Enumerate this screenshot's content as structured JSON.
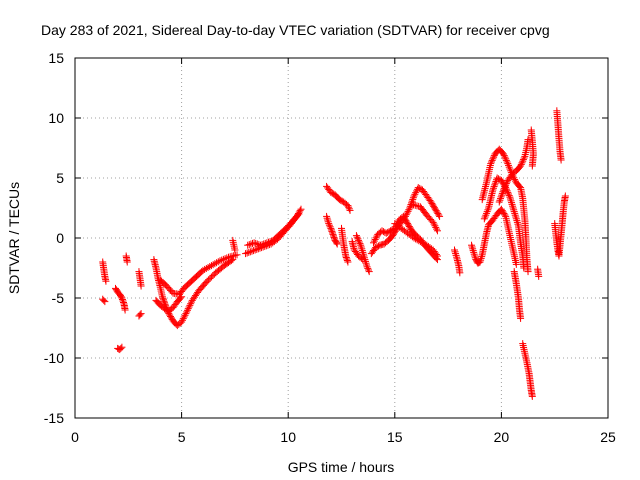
{
  "chart_data": {
    "type": "scatter",
    "title": "Day 283 of 2021, Sidereal Day-to-day VTEC variation (SDTVAR) for receiver cpvg",
    "xlabel": "GPS time / hours",
    "ylabel": "SDTVAR / TECUs",
    "xlim": [
      0,
      25
    ],
    "ylim": [
      -15,
      15
    ],
    "x_ticks": [
      "0",
      "5",
      "10",
      "15",
      "20",
      "25"
    ],
    "y_ticks": [
      "15",
      "10",
      "5",
      "0",
      "-5",
      "-10",
      "-15"
    ],
    "grid": true,
    "marker": "+",
    "color": "#ff0000",
    "segments": [
      {
        "name": "seg-01",
        "points": [
          [
            1.3,
            -2.0
          ],
          [
            1.35,
            -2.6
          ],
          [
            1.4,
            -3.2
          ],
          [
            1.45,
            -3.6
          ]
        ]
      },
      {
        "name": "seg-02",
        "points": [
          [
            1.3,
            -5.1
          ],
          [
            1.4,
            -5.3
          ]
        ]
      },
      {
        "name": "seg-03",
        "points": [
          [
            1.9,
            -4.2
          ],
          [
            2.0,
            -4.5
          ],
          [
            2.1,
            -4.7
          ],
          [
            2.2,
            -5.0
          ],
          [
            2.3,
            -5.5
          ],
          [
            2.35,
            -6.0
          ]
        ]
      },
      {
        "name": "seg-04",
        "points": [
          [
            2.0,
            -9.2
          ],
          [
            2.1,
            -9.3
          ],
          [
            2.2,
            -9.1
          ]
        ]
      },
      {
        "name": "seg-05",
        "points": [
          [
            2.4,
            -1.5
          ],
          [
            2.45,
            -2.0
          ]
        ]
      },
      {
        "name": "seg-06",
        "points": [
          [
            3.0,
            -6.5
          ],
          [
            3.1,
            -6.3
          ]
        ]
      },
      {
        "name": "seg-07",
        "points": [
          [
            3.0,
            -2.8
          ],
          [
            3.05,
            -3.4
          ],
          [
            3.1,
            -4.0
          ]
        ]
      },
      {
        "name": "seg-08",
        "points": [
          [
            3.7,
            -1.8
          ],
          [
            3.8,
            -2.5
          ],
          [
            3.9,
            -3.4
          ],
          [
            4.0,
            -4.1
          ],
          [
            4.1,
            -4.9
          ],
          [
            4.2,
            -5.4
          ],
          [
            4.3,
            -5.9
          ],
          [
            4.4,
            -6.3
          ],
          [
            4.6,
            -6.9
          ],
          [
            4.8,
            -7.3
          ],
          [
            5.0,
            -7.0
          ],
          [
            5.2,
            -6.3
          ],
          [
            5.5,
            -5.2
          ],
          [
            5.8,
            -4.4
          ],
          [
            6.2,
            -3.6
          ],
          [
            6.6,
            -2.9
          ],
          [
            7.0,
            -2.3
          ],
          [
            7.4,
            -1.8
          ]
        ]
      },
      {
        "name": "seg-09",
        "points": [
          [
            4.0,
            -3.5
          ],
          [
            4.3,
            -4.0
          ],
          [
            4.6,
            -4.6
          ],
          [
            4.9,
            -4.7
          ],
          [
            5.1,
            -4.2
          ],
          [
            5.4,
            -3.7
          ],
          [
            5.7,
            -3.2
          ],
          [
            6.0,
            -2.7
          ],
          [
            6.4,
            -2.3
          ],
          [
            6.8,
            -1.9
          ],
          [
            7.2,
            -1.6
          ],
          [
            7.6,
            -1.4
          ]
        ]
      },
      {
        "name": "seg-10",
        "points": [
          [
            3.8,
            -5.2
          ],
          [
            4.0,
            -5.6
          ],
          [
            4.2,
            -5.9
          ],
          [
            4.4,
            -6.1
          ],
          [
            4.6,
            -5.8
          ],
          [
            4.8,
            -5.3
          ],
          [
            5.0,
            -4.9
          ]
        ]
      },
      {
        "name": "seg-11",
        "points": [
          [
            7.4,
            -0.2
          ],
          [
            7.5,
            -1.0
          ]
        ]
      },
      {
        "name": "seg-12",
        "points": [
          [
            8.0,
            -1.3
          ],
          [
            8.3,
            -1.1
          ],
          [
            8.6,
            -0.9
          ],
          [
            8.9,
            -0.7
          ],
          [
            9.2,
            -0.5
          ],
          [
            9.5,
            -0.1
          ],
          [
            9.8,
            0.5
          ],
          [
            10.1,
            1.1
          ],
          [
            10.4,
            1.8
          ],
          [
            10.6,
            2.4
          ]
        ]
      },
      {
        "name": "seg-13",
        "points": [
          [
            8.1,
            -0.6
          ],
          [
            8.4,
            -0.4
          ],
          [
            8.7,
            -0.6
          ],
          [
            9.0,
            -0.4
          ],
          [
            9.3,
            -0.2
          ],
          [
            9.6,
            0.3
          ],
          [
            9.9,
            0.8
          ],
          [
            10.2,
            1.4
          ],
          [
            10.5,
            2.0
          ]
        ]
      },
      {
        "name": "seg-14",
        "points": [
          [
            11.8,
            4.3
          ],
          [
            12.0,
            3.8
          ],
          [
            12.2,
            3.6
          ],
          [
            12.4,
            3.2
          ],
          [
            12.6,
            3.0
          ],
          [
            12.8,
            2.7
          ],
          [
            12.9,
            2.3
          ]
        ]
      },
      {
        "name": "seg-15",
        "points": [
          [
            11.8,
            1.8
          ],
          [
            11.9,
            1.2
          ],
          [
            12.0,
            0.8
          ],
          [
            12.1,
            0.3
          ],
          [
            12.2,
            -0.2
          ],
          [
            12.3,
            -0.5
          ]
        ]
      },
      {
        "name": "seg-16",
        "points": [
          [
            12.5,
            0.8
          ],
          [
            12.6,
            -0.5
          ],
          [
            12.7,
            -1.5
          ],
          [
            12.8,
            -2.0
          ]
        ]
      },
      {
        "name": "seg-17",
        "points": [
          [
            13.0,
            -0.3
          ],
          [
            13.1,
            -1.0
          ],
          [
            13.3,
            -1.5
          ],
          [
            13.5,
            -1.8
          ]
        ]
      },
      {
        "name": "seg-18",
        "points": [
          [
            13.2,
            0.2
          ],
          [
            13.4,
            -0.6
          ],
          [
            13.5,
            -1.2
          ],
          [
            13.6,
            -1.8
          ],
          [
            13.7,
            -2.4
          ],
          [
            13.8,
            -2.8
          ]
        ]
      },
      {
        "name": "seg-19",
        "points": [
          [
            13.9,
            -1.3
          ],
          [
            14.1,
            -0.8
          ],
          [
            14.3,
            -0.6
          ],
          [
            14.5,
            -0.5
          ],
          [
            14.7,
            -0.2
          ],
          [
            14.9,
            0.2
          ],
          [
            15.1,
            0.8
          ],
          [
            15.3,
            1.3
          ],
          [
            15.5,
            1.8
          ],
          [
            15.7,
            2.5
          ],
          [
            15.9,
            3.5
          ],
          [
            16.1,
            4.2
          ],
          [
            16.3,
            4.0
          ],
          [
            16.5,
            3.5
          ],
          [
            16.7,
            3.0
          ],
          [
            16.9,
            2.4
          ],
          [
            17.1,
            1.8
          ]
        ]
      },
      {
        "name": "seg-20",
        "points": [
          [
            14.0,
            -0.4
          ],
          [
            14.2,
            0.3
          ],
          [
            14.4,
            0.6
          ],
          [
            14.6,
            0.4
          ],
          [
            14.8,
            0.6
          ],
          [
            15.0,
            0.8
          ],
          [
            15.2,
            1.5
          ],
          [
            15.4,
            1.8
          ],
          [
            15.6,
            1.2
          ],
          [
            15.8,
            0.6
          ],
          [
            16.0,
            0.2
          ],
          [
            16.2,
            -0.1
          ],
          [
            16.4,
            -0.6
          ],
          [
            16.6,
            -1.0
          ],
          [
            16.8,
            -1.4
          ],
          [
            17.0,
            -1.8
          ]
        ]
      },
      {
        "name": "seg-21",
        "points": [
          [
            15.0,
            1.2
          ],
          [
            15.3,
            0.8
          ],
          [
            15.6,
            0.4
          ],
          [
            15.9,
            0.0
          ],
          [
            16.2,
            -0.3
          ],
          [
            16.5,
            -0.6
          ],
          [
            16.8,
            -1.0
          ],
          [
            17.0,
            -1.5
          ]
        ]
      },
      {
        "name": "seg-22",
        "points": [
          [
            15.8,
            2.8
          ],
          [
            16.2,
            2.6
          ],
          [
            16.5,
            1.9
          ],
          [
            16.8,
            1.3
          ],
          [
            17.0,
            0.6
          ]
        ]
      },
      {
        "name": "seg-23",
        "points": [
          [
            17.8,
            -1.0
          ],
          [
            17.9,
            -1.6
          ],
          [
            18.0,
            -2.3
          ],
          [
            18.05,
            -2.9
          ]
        ]
      },
      {
        "name": "seg-24",
        "points": [
          [
            18.6,
            -0.6
          ],
          [
            18.7,
            -1.2
          ],
          [
            18.8,
            -1.8
          ],
          [
            18.9,
            -2.1
          ],
          [
            19.0,
            -2.0
          ],
          [
            19.1,
            -1.4
          ],
          [
            19.2,
            -0.5
          ],
          [
            19.3,
            0.4
          ],
          [
            19.4,
            1.1
          ],
          [
            19.6,
            1.5
          ],
          [
            19.8,
            2.0
          ],
          [
            20.0,
            2.4
          ],
          [
            20.2,
            1.8
          ],
          [
            20.3,
            1.0
          ],
          [
            20.4,
            0.2
          ],
          [
            20.5,
            -0.6
          ],
          [
            20.6,
            -1.4
          ],
          [
            20.7,
            -2.2
          ]
        ]
      },
      {
        "name": "seg-25",
        "points": [
          [
            19.1,
            3.2
          ],
          [
            19.3,
            4.6
          ],
          [
            19.5,
            6.2
          ],
          [
            19.7,
            7.0
          ],
          [
            19.9,
            7.4
          ],
          [
            20.1,
            7.0
          ],
          [
            20.3,
            6.2
          ],
          [
            20.5,
            5.3
          ],
          [
            20.7,
            4.6
          ],
          [
            20.9,
            4.2
          ],
          [
            21.0,
            3.3
          ],
          [
            21.1,
            1.5
          ],
          [
            21.15,
            0.0
          ],
          [
            21.2,
            -1.8
          ],
          [
            21.25,
            -2.8
          ]
        ]
      },
      {
        "name": "seg-26",
        "points": [
          [
            19.2,
            1.6
          ],
          [
            19.4,
            2.5
          ],
          [
            19.6,
            4.0
          ],
          [
            19.8,
            5.0
          ],
          [
            20.0,
            4.8
          ],
          [
            20.2,
            4.2
          ],
          [
            20.4,
            3.4
          ],
          [
            20.6,
            2.2
          ],
          [
            20.8,
            1.0
          ],
          [
            20.9,
            -0.4
          ],
          [
            21.0,
            -1.5
          ],
          [
            21.05,
            -2.5
          ]
        ]
      },
      {
        "name": "seg-27",
        "points": [
          [
            19.9,
            3.0
          ],
          [
            20.1,
            4.0
          ],
          [
            20.3,
            4.8
          ],
          [
            20.5,
            5.3
          ],
          [
            20.7,
            5.6
          ],
          [
            20.9,
            6.0
          ],
          [
            21.1,
            6.8
          ],
          [
            21.2,
            7.6
          ],
          [
            21.25,
            8.2
          ]
        ]
      },
      {
        "name": "seg-28",
        "points": [
          [
            20.6,
            -2.8
          ],
          [
            20.7,
            -3.8
          ],
          [
            20.8,
            -5.0
          ],
          [
            20.85,
            -6.0
          ],
          [
            20.9,
            -6.7
          ]
        ]
      },
      {
        "name": "seg-29",
        "points": [
          [
            21.0,
            -8.8
          ],
          [
            21.1,
            -9.6
          ],
          [
            21.2,
            -10.4
          ],
          [
            21.3,
            -11.3
          ],
          [
            21.35,
            -12.0
          ],
          [
            21.4,
            -12.7
          ],
          [
            21.45,
            -13.2
          ]
        ]
      },
      {
        "name": "seg-30",
        "points": [
          [
            21.4,
            9.0
          ],
          [
            21.45,
            8.1
          ],
          [
            21.5,
            7.0
          ],
          [
            21.45,
            6.0
          ]
        ]
      },
      {
        "name": "seg-31",
        "points": [
          [
            21.7,
            -2.6
          ],
          [
            21.75,
            -3.2
          ]
        ]
      },
      {
        "name": "seg-32",
        "points": [
          [
            22.6,
            10.6
          ],
          [
            22.65,
            9.5
          ],
          [
            22.7,
            8.3
          ],
          [
            22.75,
            7.2
          ],
          [
            22.8,
            6.5
          ]
        ]
      },
      {
        "name": "seg-33",
        "points": [
          [
            22.5,
            1.2
          ],
          [
            22.55,
            0.4
          ],
          [
            22.6,
            -0.4
          ],
          [
            22.65,
            -1.0
          ],
          [
            22.7,
            -1.5
          ],
          [
            22.75,
            -0.6
          ],
          [
            22.8,
            0.3
          ],
          [
            22.85,
            1.2
          ],
          [
            22.9,
            2.2
          ],
          [
            22.95,
            3.0
          ],
          [
            23.0,
            3.5
          ]
        ]
      }
    ]
  }
}
